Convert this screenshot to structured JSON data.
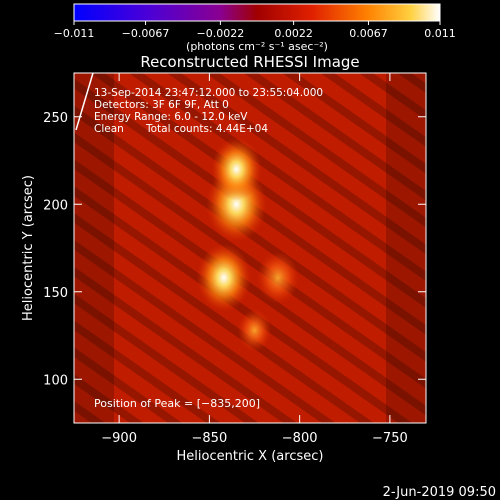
{
  "colorbar": {
    "ticks": [
      "−0.011",
      "−0.0067",
      "−0.0022",
      "0.0022",
      "0.0067",
      "0.011"
    ],
    "units": "(photons cm⁻² s⁻¹ asec⁻²)",
    "range": [
      -0.011,
      0.011
    ]
  },
  "chart_data": {
    "type": "heatmap",
    "title": "Reconstructed RHESSI Image",
    "xlabel": "Heliocentric X (arcsec)",
    "ylabel": "Heliocentric Y (arcsec)",
    "xlim": [
      -925,
      -730
    ],
    "ylim": [
      75,
      275
    ],
    "x_ticks": [
      -900,
      -850,
      -800,
      -750
    ],
    "y_ticks": [
      100,
      150,
      200,
      250
    ],
    "x_tick_labels": [
      "−900",
      "−850",
      "−800",
      "−750"
    ],
    "y_tick_labels": [
      "100",
      "150",
      "200",
      "250"
    ],
    "annotations": [
      "13-Sep-2014 23:47:12.000 to 23:55:04.000",
      "Detectors: 3F 6F 9F, Att 0",
      "Energy Range: 6.0 - 12.0 keV",
      "Clean",
      "Total counts: 4.44E+04"
    ],
    "peak_label": "Position of Peak = [−835,200]",
    "peak": [
      -835,
      200
    ],
    "sources": [
      {
        "x": -835,
        "y": 200,
        "intensity": 1.0
      },
      {
        "x": -835,
        "y": 220,
        "intensity": 0.75
      },
      {
        "x": -842,
        "y": 158,
        "intensity": 0.85
      },
      {
        "x": -812,
        "y": 158,
        "intensity": 0.55
      },
      {
        "x": -825,
        "y": 128,
        "intensity": 0.35
      }
    ]
  },
  "footer": {
    "date": "2-Jun-2019 09:50"
  }
}
